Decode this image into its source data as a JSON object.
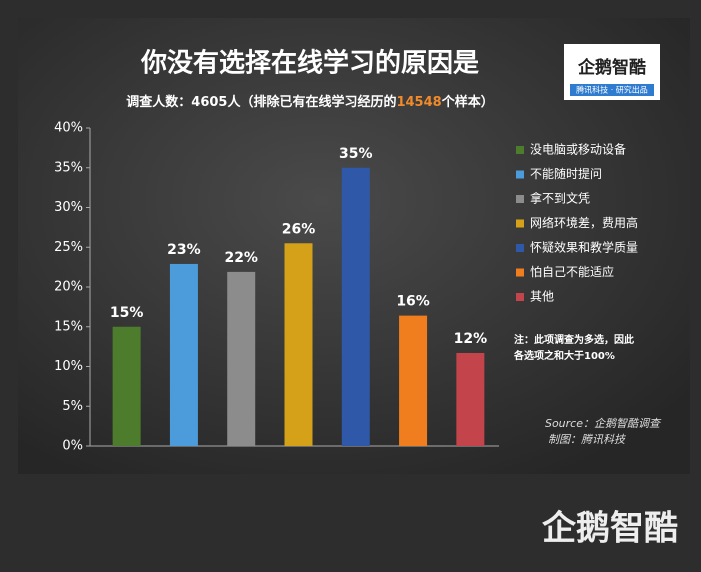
{
  "chart_data": {
    "type": "bar",
    "title": "你没有选择在线学习的原因是",
    "subtitle": [
      "调查人数：4605人（排除已有在线学习经历的",
      "14548",
      "个样本）"
    ],
    "categories": [
      "没电脑或移动设备",
      "不能随时提问",
      "拿不到文凭",
      "网络环境差，费用高",
      "怀疑效果和教学质量",
      "怕自己不能适应",
      "其他"
    ],
    "values": [
      15,
      22.9,
      21.9,
      25.5,
      35,
      16.4,
      11.7
    ],
    "value_labels": [
      "15%",
      "23%",
      "22%",
      "26%",
      "35%",
      "16%",
      "12%"
    ],
    "colors": [
      "#4d7c2c",
      "#4c9bdb",
      "#8c8c8c",
      "#d4a119",
      "#2f58a8",
      "#f07e1f",
      "#c4444b"
    ],
    "ylim": [
      0,
      40
    ],
    "yticks": [
      {
        "value": 0,
        "label": "0%"
      },
      {
        "value": 5,
        "label": "5%"
      },
      {
        "value": 10,
        "label": "10%"
      },
      {
        "value": 15,
        "label": "15%"
      },
      {
        "value": 20,
        "label": "20%"
      },
      {
        "value": 25,
        "label": "25%"
      },
      {
        "value": 30,
        "label": "30%"
      },
      {
        "value": 35,
        "label": "35%"
      },
      {
        "value": 40,
        "label": "40%"
      }
    ],
    "legend": "right",
    "note": [
      "注：此项调查为多选，因此",
      "各选项之和大于100%"
    ],
    "source": [
      "Source：企鹅智酷调查",
      "制图：腾讯科技"
    ],
    "logo": [
      "企鹅智酷",
      "腾讯科技 · 研究出品"
    ],
    "brand": "企鹅智酷"
  }
}
